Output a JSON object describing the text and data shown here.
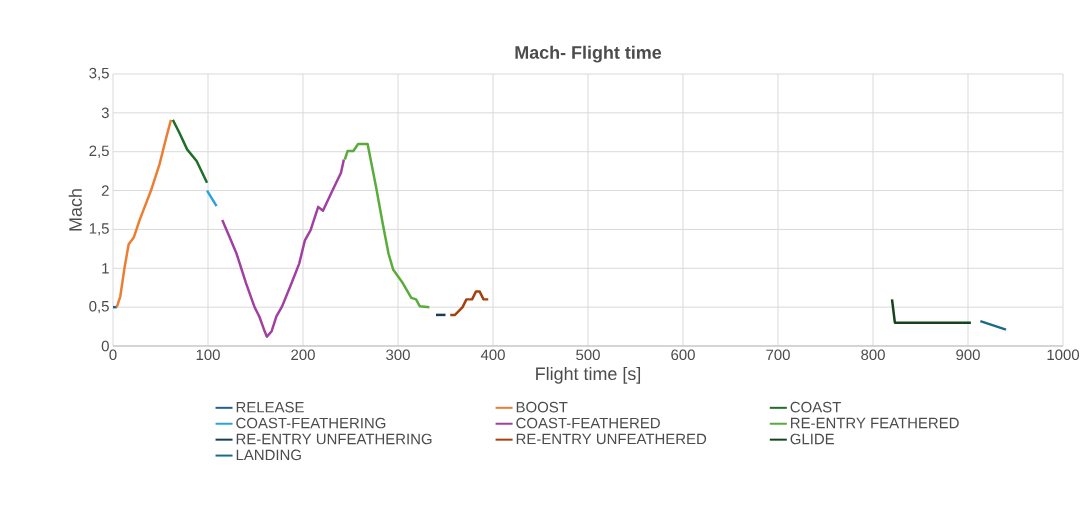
{
  "chart_data": {
    "type": "line",
    "title": "Mach- Flight time",
    "xlabel": "Flight time [s]",
    "ylabel": "Mach",
    "xlim": [
      0,
      1000
    ],
    "xticks": [
      0,
      100,
      200,
      300,
      400,
      500,
      600,
      700,
      800,
      900,
      1000
    ],
    "ylim": [
      0,
      3.5
    ],
    "yticks": [
      0,
      {
        "value": 0.5,
        "label": "0,5"
      },
      1,
      {
        "value": 1.5,
        "label": "1,5"
      },
      2,
      {
        "value": 2.5,
        "label": "2,5"
      },
      3,
      {
        "value": 3.5,
        "label": "3,5"
      }
    ],
    "grid": true,
    "legend": "bottom",
    "marker": "none",
    "line_style": "solid",
    "series": [
      {
        "name": "RELEASE",
        "color": "#1f6391",
        "x": [
          0,
          4
        ],
        "values": [
          0.5,
          0.5
        ]
      },
      {
        "name": "BOOST",
        "color": "#ed7d31",
        "x": [
          4,
          7.7,
          12.3,
          16.5,
          22,
          28,
          40,
          49,
          56,
          61
        ],
        "values": [
          0.5,
          0.64,
          1.02,
          1.31,
          1.4,
          1.62,
          2.0,
          2.34,
          2.68,
          2.91
        ]
      },
      {
        "name": "COAST",
        "color": "#1f6e2a",
        "x": [
          63,
          70,
          78,
          88,
          99
        ],
        "values": [
          2.91,
          2.74,
          2.53,
          2.38,
          2.1
        ]
      },
      {
        "name": "COAST-FEATHERING",
        "color": "#2aa3dc",
        "x": [
          99,
          109
        ],
        "values": [
          2.0,
          1.8
        ]
      },
      {
        "name": "COAST-FEATHERED",
        "color": "#a040a0",
        "x": [
          115,
          121,
          130,
          140,
          149,
          154,
          159,
          162,
          167,
          172,
          178,
          188,
          196,
          202,
          208,
          216,
          221,
          231,
          240,
          243
        ],
        "values": [
          1.62,
          1.45,
          1.19,
          0.81,
          0.5,
          0.38,
          0.21,
          0.12,
          0.19,
          0.38,
          0.51,
          0.81,
          1.06,
          1.36,
          1.49,
          1.79,
          1.74,
          2.0,
          2.23,
          2.4
        ]
      },
      {
        "name": "RE-ENTRY FEATHERED",
        "color": "#5aac3a",
        "x": [
          244,
          247,
          253,
          258,
          268,
          277,
          284,
          290,
          295,
          305,
          314,
          319,
          323,
          333
        ],
        "values": [
          2.4,
          2.51,
          2.51,
          2.6,
          2.6,
          2.04,
          1.57,
          1.19,
          0.98,
          0.81,
          0.62,
          0.6,
          0.51,
          0.5
        ]
      },
      {
        "name": "RE-ENTRY UNFEATHERING",
        "color": "#153e56",
        "x": [
          340,
          350
        ],
        "values": [
          0.4,
          0.4
        ]
      },
      {
        "name": "RE-ENTRY UNFEATHERED",
        "color": "#a5400f",
        "x": [
          355,
          360,
          368,
          372,
          378,
          382,
          386,
          390,
          395
        ],
        "values": [
          0.4,
          0.4,
          0.5,
          0.6,
          0.6,
          0.7,
          0.7,
          0.6,
          0.6
        ]
      },
      {
        "name": "GLIDE",
        "color": "#14441c",
        "x": [
          820,
          823,
          903
        ],
        "values": [
          0.6,
          0.3,
          0.3
        ]
      },
      {
        "name": "LANDING",
        "color": "#1c6a8a",
        "x": [
          913,
          940
        ],
        "values": [
          0.32,
          0.21
        ]
      }
    ]
  }
}
